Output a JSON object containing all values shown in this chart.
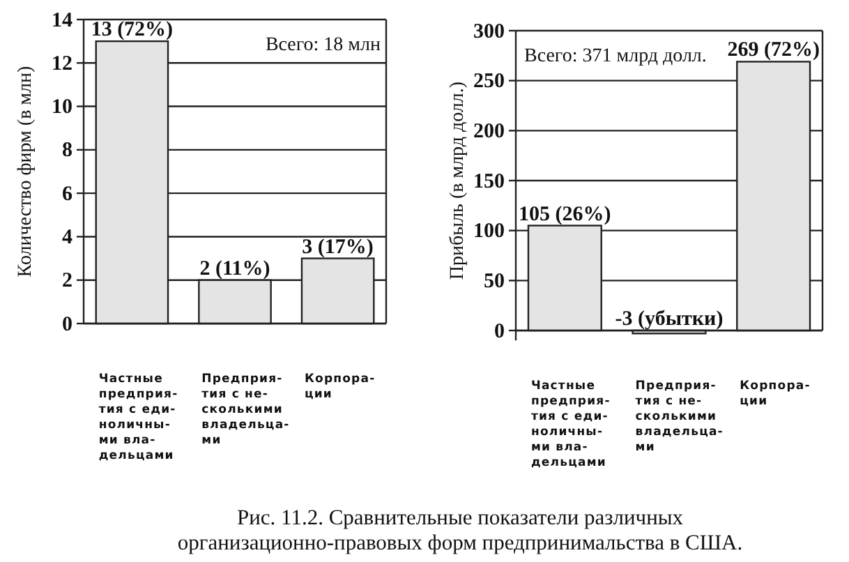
{
  "chart_data": [
    {
      "type": "bar",
      "ylabel": "Количество фирм (в млн)",
      "categories": [
        "Частные\nпредприя-\nтия с еди-\nноличны-\nми вла-\nдельцами",
        "Предприя-\nтия с не-\nсколькими\nвладельца-\nми",
        "Корпора-\nции"
      ],
      "values": [
        13,
        2,
        3
      ],
      "color": "#e4e4e4",
      "value_labels": [
        "13 (72%)",
        "2 (11%)",
        "3 (17%)"
      ],
      "ylim": [
        0,
        14
      ],
      "yticks": [
        0,
        2,
        4,
        6,
        8,
        10,
        12,
        14
      ],
      "grid": "y",
      "annotations": [
        "Всего: 18 млн",
        "Рис. 11.2. Сравнительные показатели различных организационно-правовых форм предпринимальства в США."
      ]
    },
    {
      "type": "bar",
      "ylabel": "Прибыль (в млрд долл.)",
      "categories": [
        "Частные\nпредприя-\nтия с еди-\nноличны-\nми вла-\nдельцами",
        "Предприя-\nтия с не-\nсколькими\nвладельца-\nми",
        "Корпора-\nции"
      ],
      "values": [
        105,
        -3,
        269
      ],
      "color": "#e4e4e4",
      "value_labels": [
        "105 (26%)",
        "-3 (убытки)",
        "269 (72%)"
      ],
      "ylim": [
        -10,
        300
      ],
      "yticks": [
        0,
        50,
        100,
        150,
        200,
        250,
        300
      ],
      "grid": "y",
      "annotations": [
        "Всего: 371 млрд долл."
      ]
    }
  ]
}
